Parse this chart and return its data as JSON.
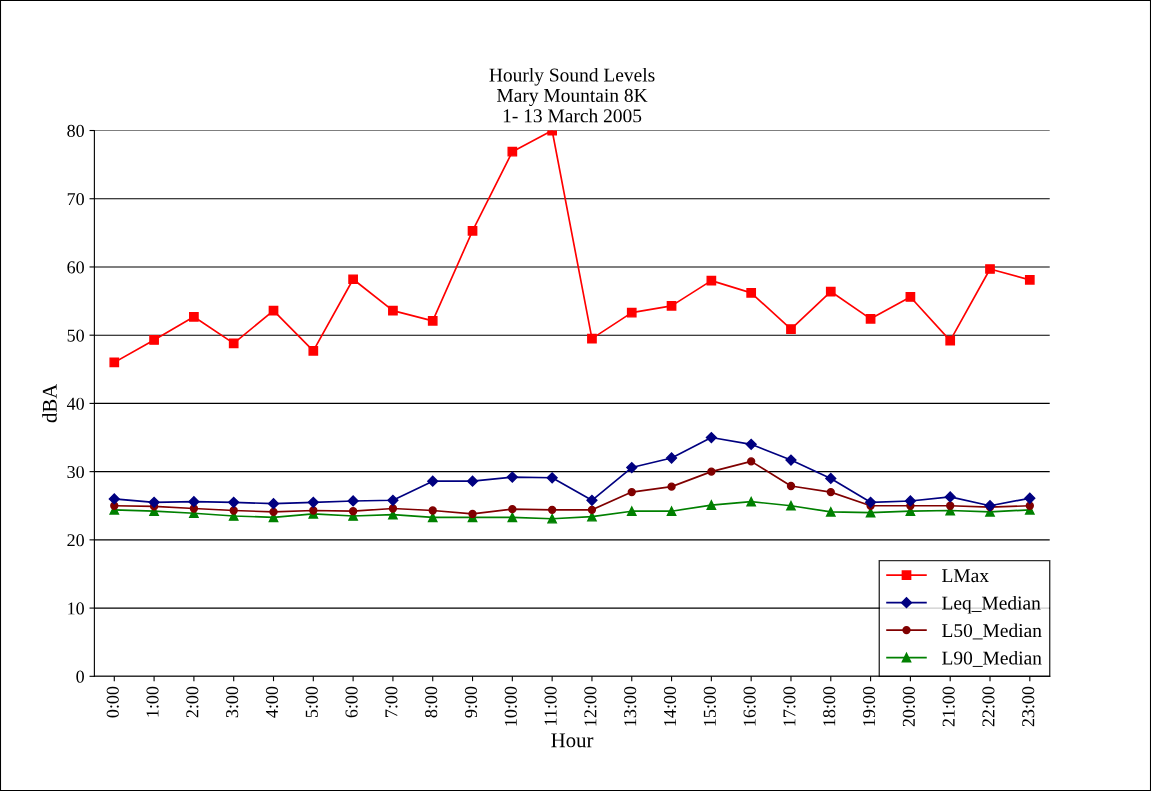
{
  "chart_data": {
    "type": "line",
    "title": "Hourly Sound Levels\nMary Mountain 8K\n1- 13 March 2005",
    "xlabel": "Hour",
    "ylabel": "dBA",
    "categories": [
      "0:00",
      "1:00",
      "2:00",
      "3:00",
      "4:00",
      "5:00",
      "6:00",
      "7:00",
      "8:00",
      "9:00",
      "10:00",
      "11:00",
      "12:00",
      "13:00",
      "14:00",
      "15:00",
      "16:00",
      "17:00",
      "18:00",
      "19:00",
      "20:00",
      "21:00",
      "22:00",
      "23:00"
    ],
    "series": [
      {
        "name": "LMax",
        "color": "#ff0000",
        "marker": "square",
        "values": [
          46.0,
          49.3,
          52.7,
          48.8,
          53.6,
          47.7,
          58.2,
          53.6,
          52.1,
          65.3,
          76.9,
          80,
          49.5,
          53.3,
          54.3,
          58.0,
          56.2,
          50.9,
          56.4,
          52.4,
          55.6,
          49.2,
          59.7,
          58.1
        ]
      },
      {
        "name": "Leq_Median",
        "color": "#000080",
        "marker": "diamond",
        "values": [
          26.0,
          25.5,
          25.6,
          25.5,
          25.3,
          25.5,
          25.7,
          25.8,
          28.6,
          28.6,
          29.2,
          29.1,
          25.8,
          30.6,
          32.0,
          35.0,
          34.0,
          31.7,
          29.0,
          25.5,
          25.7,
          26.3,
          25.0,
          26.1
        ]
      },
      {
        "name": "L50_Median",
        "color": "#800000",
        "marker": "circle",
        "values": [
          25.0,
          24.9,
          24.6,
          24.3,
          24.1,
          24.3,
          24.2,
          24.6,
          24.3,
          23.8,
          24.5,
          24.4,
          24.4,
          27.0,
          27.8,
          30.0,
          31.5,
          27.9,
          27.0,
          25.0,
          25.0,
          25.0,
          24.8,
          25.0
        ]
      },
      {
        "name": "L90_Median",
        "color": "#008000",
        "marker": "triangle",
        "values": [
          24.4,
          24.2,
          23.9,
          23.5,
          23.3,
          23.8,
          23.5,
          23.7,
          23.3,
          23.3,
          23.3,
          23.1,
          23.4,
          24.2,
          24.2,
          25.1,
          25.6,
          25.0,
          24.1,
          24.0,
          24.2,
          24.3,
          24.1,
          24.4
        ]
      }
    ],
    "ylim": [
      0,
      80
    ],
    "yticks": [
      0,
      10,
      20,
      30,
      40,
      50,
      60,
      70,
      80
    ],
    "grid": "y",
    "legend": "bottom right",
    "line_style": "solid"
  }
}
